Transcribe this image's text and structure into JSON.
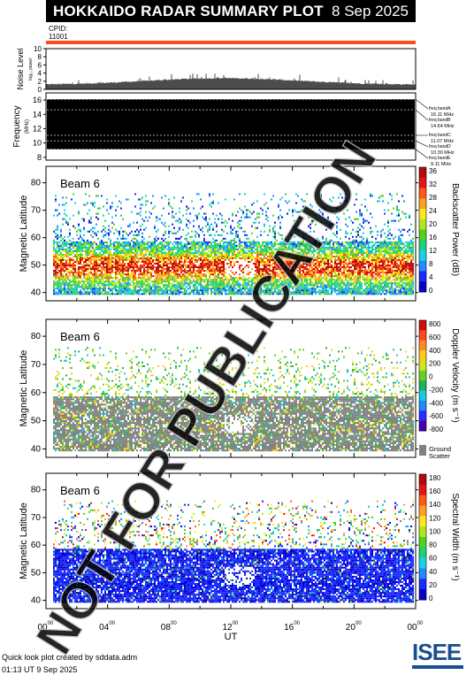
{
  "header": {
    "title": "HOKKAIDO RADAR SUMMARY PLOT",
    "date": "8 Sep 2025"
  },
  "cpid": {
    "label": "CPID:",
    "value": "11001"
  },
  "noise": {
    "ylabel": "Noise Level",
    "sublabel": "log₁₀ power",
    "ticks": [
      "0",
      "2",
      "4",
      "6",
      "8",
      "10"
    ]
  },
  "frequency": {
    "ylabel": "Frequency",
    "unit": "(MHz)",
    "ticks": [
      "8",
      "10",
      "12",
      "14",
      "16"
    ],
    "bands": [
      {
        "label": "freq bandA",
        "value": "16.11 MHz",
        "mhz": 16.11
      },
      {
        "label": "freq bandB",
        "value": "14.64 MHz",
        "mhz": 14.64
      },
      {
        "label": "freq bandC",
        "value": "11.07 MHz",
        "mhz": 11.07
      },
      {
        "label": "freq bandD",
        "value": "10.30 MHz",
        "mhz": 10.3
      },
      {
        "label": "freq bandE",
        "value": "9.11 MHz",
        "mhz": 9.11
      }
    ]
  },
  "beam_label": "Beam  6",
  "lat_axis": {
    "label": "Magnetic Latitude",
    "ticks": [
      "40",
      "50",
      "60",
      "70",
      "80"
    ],
    "range": [
      37,
      86
    ]
  },
  "x_axis": {
    "label": "UT",
    "ticks": [
      "00",
      "04",
      "08",
      "12",
      "16",
      "20",
      "00"
    ],
    "super": "00",
    "range_hours": [
      0,
      24
    ]
  },
  "panels": [
    {
      "name": "power",
      "cbar_label": "Backscatter Power (dB)",
      "cbar_ticks": [
        "0",
        "4",
        "8",
        "12",
        "16",
        "20",
        "24",
        "28",
        "32",
        "36"
      ],
      "palette": "rainbow"
    },
    {
      "name": "velocity",
      "cbar_label": "Doppler Velocity (m s⁻¹)",
      "cbar_ticks": [
        "-800",
        "-600",
        "-400",
        "-200",
        "0",
        "200",
        "400",
        "600",
        "800"
      ],
      "palette": "velocity",
      "ground_label": "Ground",
      "ground_label2": "Scatter"
    },
    {
      "name": "width",
      "cbar_label": "Spectral Width (m s⁻¹)",
      "cbar_ticks": [
        "0",
        "20",
        "40",
        "60",
        "80",
        "100",
        "120",
        "140",
        "160",
        "180"
      ],
      "palette": "rainbow"
    }
  ],
  "watermark": "NOT FOR PUBLICATION",
  "footer": {
    "credit": "Quick look plot created by sddata.adm",
    "timestamp": "01:13 UT  9 Sep 2025"
  },
  "logo": {
    "text": "ISEE"
  },
  "colors": {
    "accent_bar": "#ff4a1a",
    "header_bg": "#000000",
    "ground_scatter": "#808080",
    "watermark": "#c8c8c8"
  }
}
